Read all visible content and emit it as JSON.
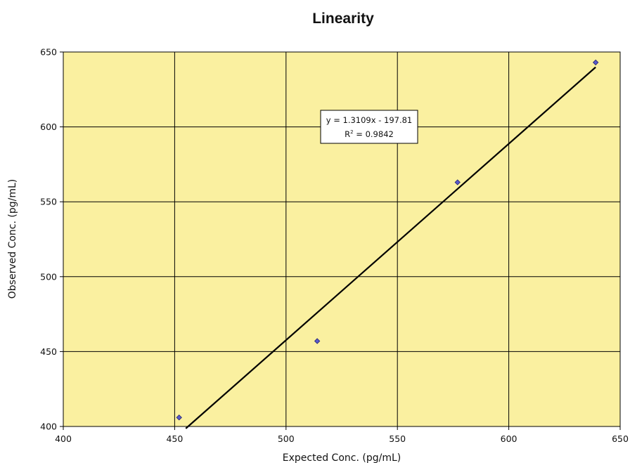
{
  "chart_data": {
    "type": "scatter",
    "title": "Linearity",
    "xlabel": "Expected Conc. (pg/mL)",
    "ylabel": "Observed Conc. (pg/mL)",
    "xlim": [
      400,
      650
    ],
    "ylim": [
      400,
      650
    ],
    "x_ticks": [
      "400",
      "450",
      "500",
      "550",
      "600",
      "650"
    ],
    "y_ticks": [
      "400",
      "450",
      "500",
      "550",
      "600",
      "650"
    ],
    "grid": true,
    "series": [
      {
        "points": [
          {
            "x": 452,
            "y": 406
          },
          {
            "x": 514,
            "y": 457
          },
          {
            "x": 577,
            "y": 563
          },
          {
            "x": 639,
            "y": 643
          }
        ]
      }
    ],
    "trendline": {
      "type": "linear",
      "slope": 1.3109,
      "intercept": -197.81,
      "x_range": [
        455.0,
        639
      ],
      "equation_label": "y = 1.3109x - 197.81",
      "r2_prefix": "R",
      "r2_sup": "2",
      "r2_value": " = 0.9842"
    },
    "colors": {
      "plot_background": "#FAF0A0",
      "marker_fill": "#5A5ACC",
      "marker_stroke": "#22226E",
      "trendline": "#000000",
      "gridline": "#000000"
    }
  }
}
